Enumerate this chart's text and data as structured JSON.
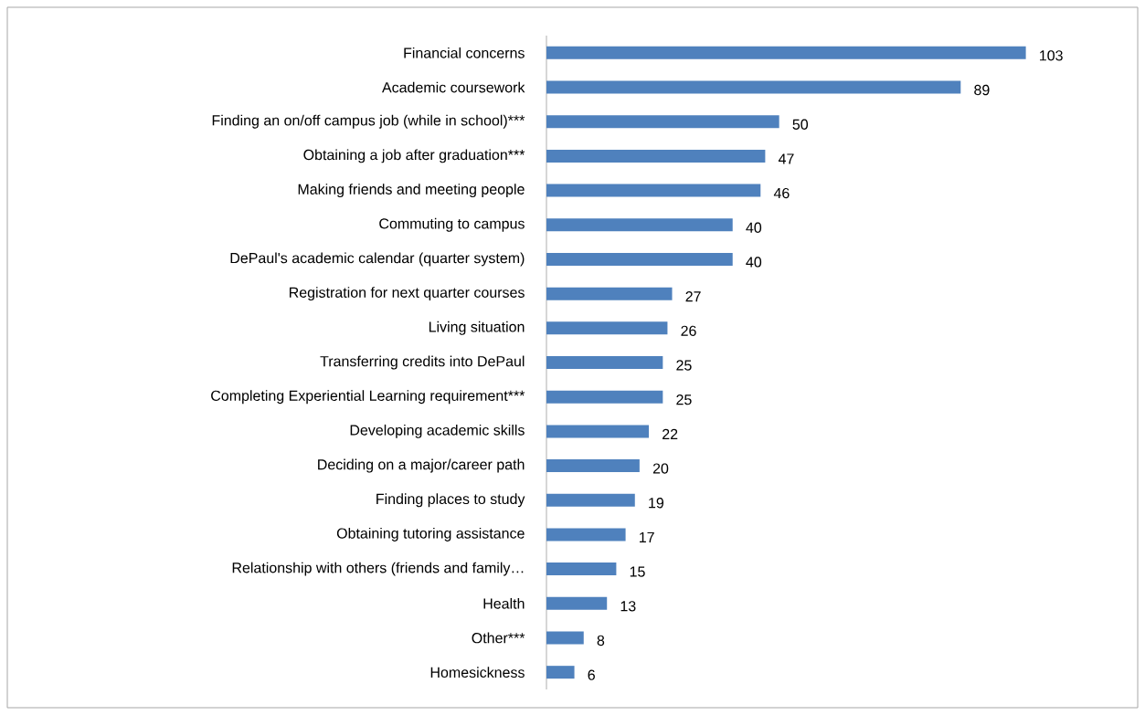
{
  "chart_data": {
    "type": "bar",
    "orientation": "horizontal",
    "color": "#4f81bd",
    "data_labels": true,
    "categories": [
      "Financial concerns",
      "Academic coursework",
      "Finding an on/off campus job (while in school)***",
      "Obtaining a job after graduation***",
      "Making friends and meeting people",
      "Commuting to campus",
      "DePaul's academic calendar (quarter system)",
      "Registration for next quarter courses",
      "Living situation",
      "Transferring credits into DePaul",
      "Completing Experiential Learning requirement***",
      "Developing academic skills",
      "Deciding on a major/career path",
      "Finding places to study",
      "Obtaining tutoring assistance",
      "Relationship with others (friends and family…",
      "Health",
      "Other***",
      "Homesickness"
    ],
    "values": [
      103,
      89,
      50,
      47,
      46,
      40,
      40,
      27,
      26,
      25,
      25,
      22,
      20,
      19,
      17,
      15,
      13,
      8,
      6
    ]
  }
}
